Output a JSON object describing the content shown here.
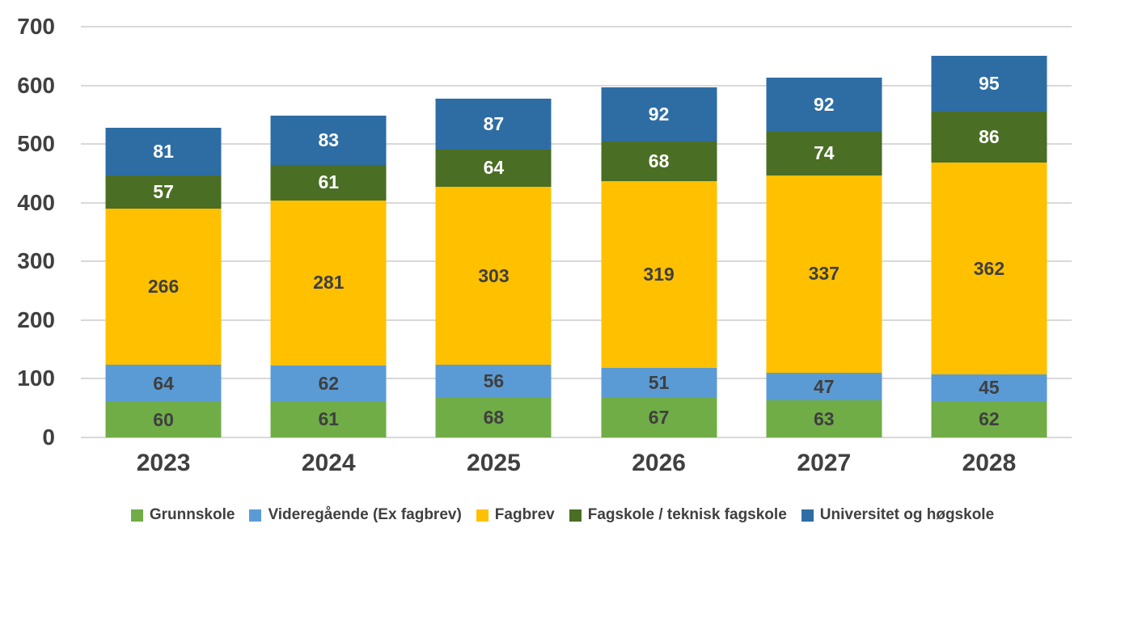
{
  "chart_data": {
    "type": "bar",
    "stacked": true,
    "title": "",
    "xlabel": "",
    "ylabel": "",
    "categories": [
      "2023",
      "2024",
      "2025",
      "2026",
      "2027",
      "2028"
    ],
    "series": [
      {
        "name": "Grunnskole",
        "color": "#70AD47",
        "label_color": "#3F3F3F",
        "values": [
          60,
          61,
          68,
          67,
          63,
          62
        ]
      },
      {
        "name": "Videregående (Ex fagbrev)",
        "color": "#5B9BD5",
        "label_color": "#3F3F3F",
        "values": [
          64,
          62,
          56,
          51,
          47,
          45
        ]
      },
      {
        "name": "Fagbrev",
        "color": "#FFC000",
        "label_color": "#3F3F3F",
        "values": [
          266,
          281,
          303,
          319,
          337,
          362
        ]
      },
      {
        "name": "Fagskole / teknisk fagskole",
        "color": "#4A6E24",
        "label_color": "#FFFFFF",
        "values": [
          57,
          61,
          64,
          68,
          74,
          86
        ]
      },
      {
        "name": "Universitet og høgskole",
        "color": "#2E6DA4",
        "label_color": "#FFFFFF",
        "values": [
          81,
          83,
          87,
          92,
          92,
          95
        ]
      }
    ],
    "totals": [
      528,
      548,
      578,
      597,
      613,
      650
    ],
    "y_axis": {
      "min": 0,
      "max": 700,
      "step": 100,
      "tick_labels": [
        "0",
        "100",
        "200",
        "300",
        "400",
        "500",
        "600",
        "700"
      ]
    },
    "grid": true,
    "gridline_color": "#D9D9D9",
    "background_color": "#FFFFFF",
    "axis_text_color": "#404040",
    "legend_position": "bottom"
  }
}
